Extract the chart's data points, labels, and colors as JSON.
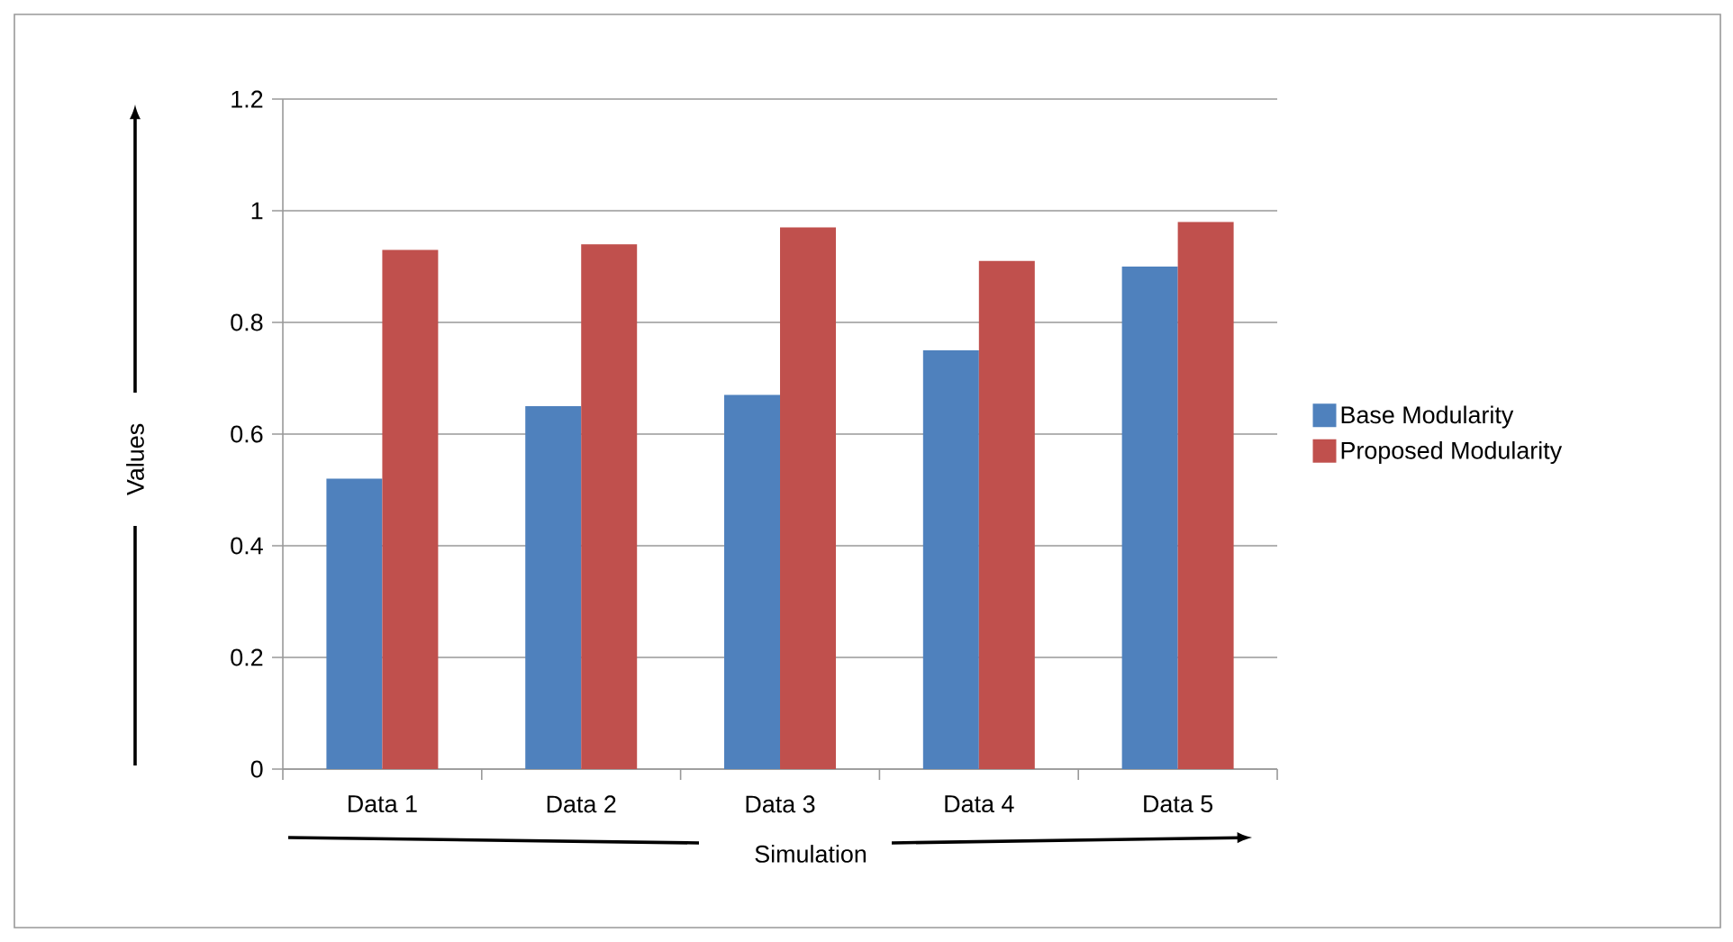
{
  "chart_data": {
    "type": "bar",
    "categories": [
      "Data 1",
      "Data 2",
      "Data 3",
      "Data 4",
      "Data 5"
    ],
    "series": [
      {
        "name": "Base Modularity",
        "color": "#4f81bd",
        "values": [
          0.52,
          0.65,
          0.67,
          0.75,
          0.9
        ]
      },
      {
        "name": "Proposed Modularity",
        "color": "#c0504d",
        "values": [
          0.93,
          0.94,
          0.97,
          0.91,
          0.98
        ]
      }
    ],
    "xlabel": "Simulation",
    "ylabel": "Values",
    "ylim": [
      0,
      1.2
    ],
    "yticks": [
      0,
      0.2,
      0.4,
      0.6,
      0.8,
      1,
      1.2
    ],
    "grid": "y",
    "legend": "right"
  }
}
